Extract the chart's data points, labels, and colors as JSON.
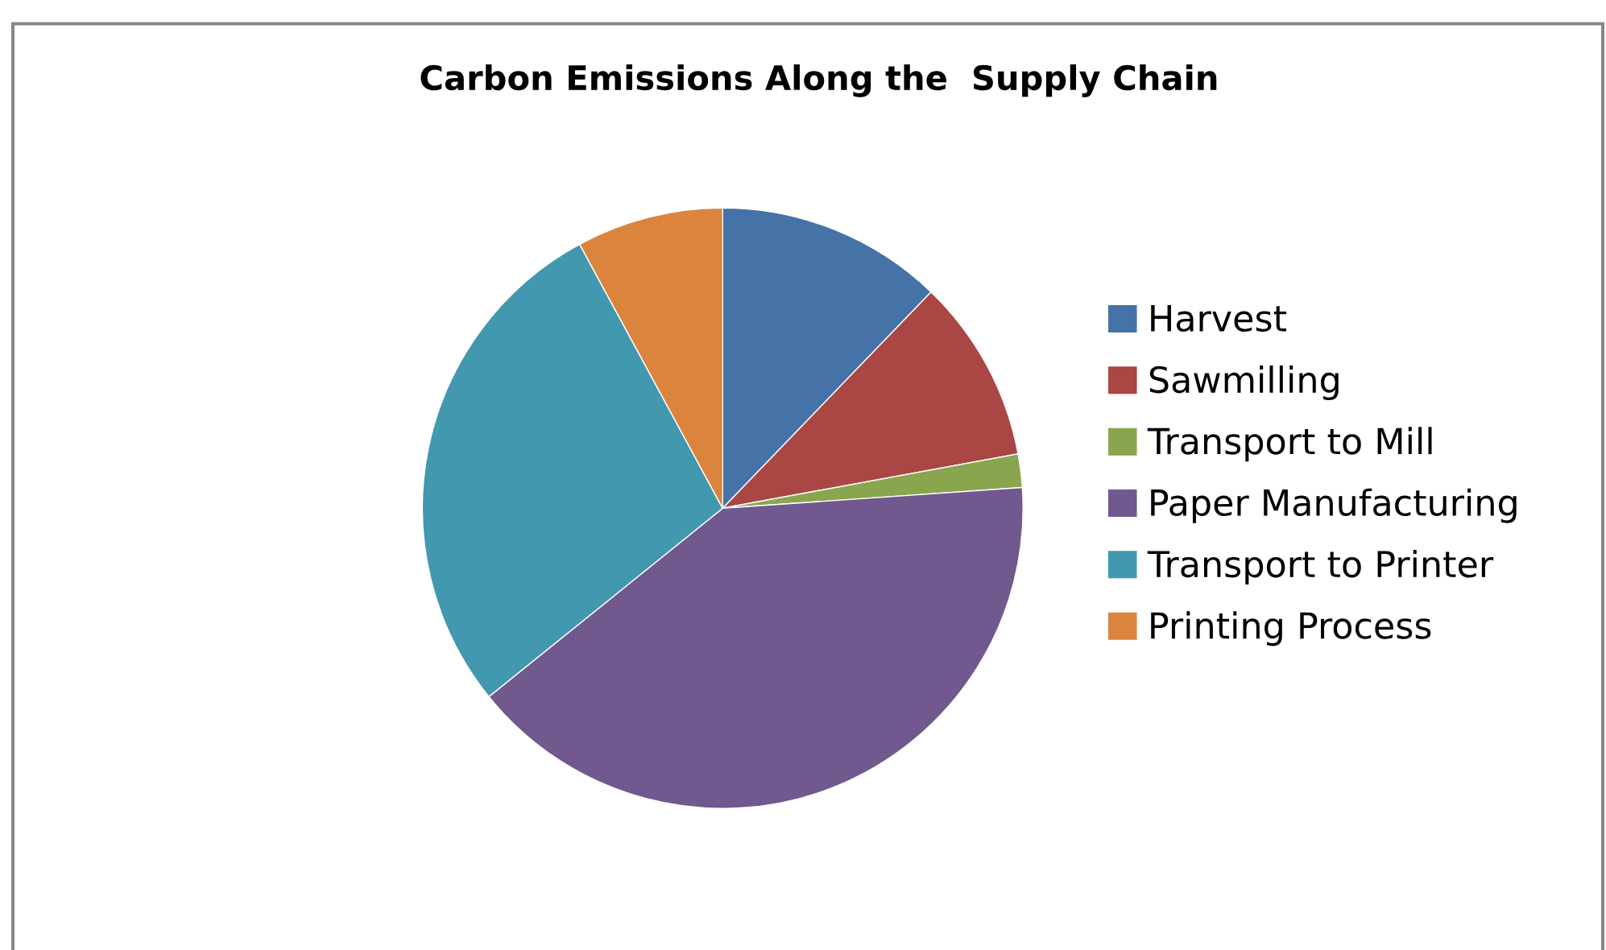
{
  "chart_data": {
    "type": "pie",
    "title": "Carbon Emissions Along the  Supply Chain",
    "categories": [
      "Harvest",
      "Sawmilling",
      "Transport to Mill",
      "Paper Manufacturing",
      "Transport to Printer",
      "Printing Process"
    ],
    "values": [
      12.2,
      9.9,
      1.8,
      40.3,
      27.9,
      7.9
    ],
    "colors": [
      "#4572a7",
      "#aa4643",
      "#89a54e",
      "#71588f",
      "#4198af",
      "#db843d"
    ],
    "legend": "right"
  }
}
